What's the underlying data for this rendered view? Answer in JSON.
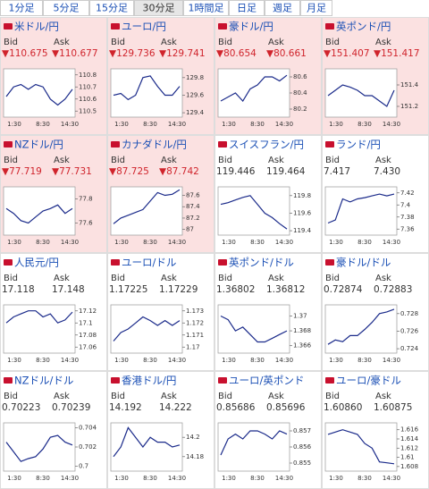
{
  "tabs": [
    "1分足",
    "5分足",
    "15分足",
    "30分足",
    "1時間足",
    "日足",
    "週足",
    "月足"
  ],
  "selected_tab": 3,
  "bid_label": "Bid",
  "ask_label": "Ask",
  "tiles": [
    {
      "name": "米ドル/円",
      "bid": "▼110.675",
      "ask": "▼110.677",
      "down": true,
      "ylim": [
        110.45,
        110.85
      ],
      "yticks": [
        110.8,
        110.7,
        110.6,
        110.5
      ],
      "x_labels": [
        "1:30",
        "8:30",
        "14:30"
      ],
      "values": [
        110.62,
        110.7,
        110.72,
        110.68,
        110.72,
        110.7,
        110.6,
        110.55,
        110.6,
        110.68
      ]
    },
    {
      "name": "ユーロ/円",
      "bid": "▼129.736",
      "ask": "▼129.741",
      "down": true,
      "ylim": [
        129.35,
        129.9
      ],
      "yticks": [
        129.8,
        129.6,
        129.4
      ],
      "x_labels": [
        "1:30",
        "8:30",
        "14:30"
      ],
      "values": [
        129.6,
        129.62,
        129.55,
        129.6,
        129.8,
        129.82,
        129.7,
        129.6,
        129.6,
        129.7
      ]
    },
    {
      "name": "豪ドル/円",
      "bid": "▼80.654",
      "ask": "▼80.661",
      "down": true,
      "ylim": [
        80.1,
        80.7
      ],
      "yticks": [
        80.6,
        80.4,
        80.2
      ],
      "x_labels": [
        "1:30",
        "8:30",
        "14:30"
      ],
      "values": [
        80.3,
        80.35,
        80.4,
        80.3,
        80.45,
        80.5,
        80.6,
        80.6,
        80.55,
        80.62
      ]
    },
    {
      "name": "英ポンド/円",
      "bid": "▼151.407",
      "ask": "▼151.417",
      "down": true,
      "ylim": [
        151.1,
        151.55
      ],
      "yticks": [
        151.4,
        151.2
      ],
      "x_labels": [
        "1:30",
        "8:30",
        "14:30"
      ],
      "values": [
        151.3,
        151.35,
        151.4,
        151.38,
        151.35,
        151.3,
        151.3,
        151.25,
        151.2,
        151.35
      ]
    },
    {
      "name": "NZドル/円",
      "bid": "▼77.719",
      "ask": "▼77.731",
      "down": true,
      "ylim": [
        77.5,
        77.9
      ],
      "yticks": [
        77.8,
        77.6
      ],
      "x_labels": [
        "1:30",
        "8:30",
        "14:30"
      ],
      "values": [
        77.72,
        77.68,
        77.62,
        77.6,
        77.65,
        77.7,
        77.72,
        77.75,
        77.68,
        77.72
      ]
    },
    {
      "name": "カナダドル/円",
      "bid": "▼87.725",
      "ask": "▼87.742",
      "down": true,
      "ylim": [
        86.9,
        87.75
      ],
      "yticks": [
        87.6,
        87.4,
        87.2,
        87
      ],
      "x_labels": [
        "1:30",
        "8:30",
        "14:30"
      ],
      "values": [
        87.1,
        87.2,
        87.25,
        87.3,
        87.35,
        87.5,
        87.65,
        87.6,
        87.62,
        87.7
      ]
    },
    {
      "name": "スイスフラン/円",
      "bid": "119.446",
      "ask": "119.464",
      "down": false,
      "ylim": [
        119.35,
        119.9
      ],
      "yticks": [
        119.8,
        119.6,
        119.4
      ],
      "x_labels": [
        "1:30",
        "8:30",
        "14:30"
      ],
      "values": [
        119.7,
        119.72,
        119.75,
        119.78,
        119.8,
        119.7,
        119.6,
        119.55,
        119.48,
        119.42
      ]
    },
    {
      "name": "ランド/円",
      "bid": "7.417",
      "ask": "7.430",
      "down": false,
      "ylim": [
        7.35,
        7.43
      ],
      "yticks": [
        7.42,
        7.4,
        7.38,
        7.36
      ],
      "x_labels": [
        "1:30",
        "8:30",
        "14:30"
      ],
      "values": [
        7.37,
        7.375,
        7.41,
        7.405,
        7.41,
        7.412,
        7.415,
        7.418,
        7.415,
        7.418
      ]
    },
    {
      "name": "人民元/円",
      "bid": "17.118",
      "ask": "17.148",
      "down": false,
      "ylim": [
        17.05,
        17.13
      ],
      "yticks": [
        17.12,
        17.1,
        17.08,
        17.06
      ],
      "x_labels": [
        "1:30",
        "8:30",
        "14:30"
      ],
      "values": [
        17.1,
        17.11,
        17.115,
        17.12,
        17.12,
        17.11,
        17.115,
        17.1,
        17.105,
        17.118
      ]
    },
    {
      "name": "ユーロ/ドル",
      "bid": "1.17225",
      "ask": "1.17229",
      "down": false,
      "ylim": [
        1.1695,
        1.1735
      ],
      "yticks": [
        1.173,
        1.172,
        1.171,
        1.17
      ],
      "x_labels": [
        "1:30",
        "8:30",
        "14:30"
      ],
      "values": [
        1.1705,
        1.1712,
        1.1715,
        1.172,
        1.1725,
        1.1722,
        1.1718,
        1.1722,
        1.1718,
        1.1722
      ]
    },
    {
      "name": "英ポンド/ドル",
      "bid": "1.36802",
      "ask": "1.36812",
      "down": false,
      "ylim": [
        1.365,
        1.3715
      ],
      "yticks": [
        1.37,
        1.368,
        1.366
      ],
      "x_labels": [
        "1:30",
        "8:30",
        "14:30"
      ],
      "values": [
        1.37,
        1.3695,
        1.368,
        1.3685,
        1.3675,
        1.3665,
        1.3665,
        1.367,
        1.3675,
        1.368
      ]
    },
    {
      "name": "豪ドル/ドル",
      "bid": "0.72874",
      "ask": "0.72883",
      "down": false,
      "ylim": [
        0.7235,
        0.729
      ],
      "yticks": [
        0.728,
        0.726,
        0.724
      ],
      "x_labels": [
        "1:30",
        "8:30",
        "14:30"
      ],
      "values": [
        0.7245,
        0.725,
        0.7248,
        0.7255,
        0.7255,
        0.7262,
        0.727,
        0.728,
        0.7282,
        0.7285
      ]
    },
    {
      "name": "NZドル/ドル",
      "bid": "0.70223",
      "ask": "0.70239",
      "down": false,
      "ylim": [
        0.6995,
        0.7045
      ],
      "yticks": [
        0.704,
        0.702,
        0.7
      ],
      "x_labels": [
        "1:30",
        "8:30",
        "14:30"
      ],
      "values": [
        0.7025,
        0.7015,
        0.7005,
        0.7008,
        0.701,
        0.7018,
        0.703,
        0.7032,
        0.7025,
        0.7022
      ]
    },
    {
      "name": "香港ドル/円",
      "bid": "14.192",
      "ask": "14.222",
      "down": false,
      "ylim": [
        14.165,
        14.215
      ],
      "yticks": [
        14.2,
        14.18
      ],
      "x_labels": [
        "1:30",
        "8:30",
        "14:30"
      ],
      "values": [
        14.18,
        14.19,
        14.21,
        14.2,
        14.19,
        14.2,
        14.195,
        14.195,
        14.19,
        14.192
      ]
    },
    {
      "name": "ユーロ/英ポンド",
      "bid": "0.85686",
      "ask": "0.85696",
      "down": false,
      "ylim": [
        0.8545,
        0.8575
      ],
      "yticks": [
        0.857,
        0.856,
        0.855
      ],
      "x_labels": [
        "1:30",
        "8:30",
        "14:30"
      ],
      "values": [
        0.8555,
        0.8565,
        0.8568,
        0.8565,
        0.857,
        0.857,
        0.8568,
        0.8565,
        0.857,
        0.8568
      ]
    },
    {
      "name": "ユーロ/豪ドル",
      "bid": "1.60860",
      "ask": "1.60875",
      "down": false,
      "ylim": [
        1.607,
        1.6175
      ],
      "yticks": [
        1.616,
        1.614,
        1.612,
        1.61,
        1.608
      ],
      "x_labels": [
        "1:30",
        "8:30",
        "14:30"
      ],
      "values": [
        1.615,
        1.6155,
        1.616,
        1.6155,
        1.615,
        1.613,
        1.612,
        1.609,
        1.6088,
        1.6086
      ]
    }
  ]
}
